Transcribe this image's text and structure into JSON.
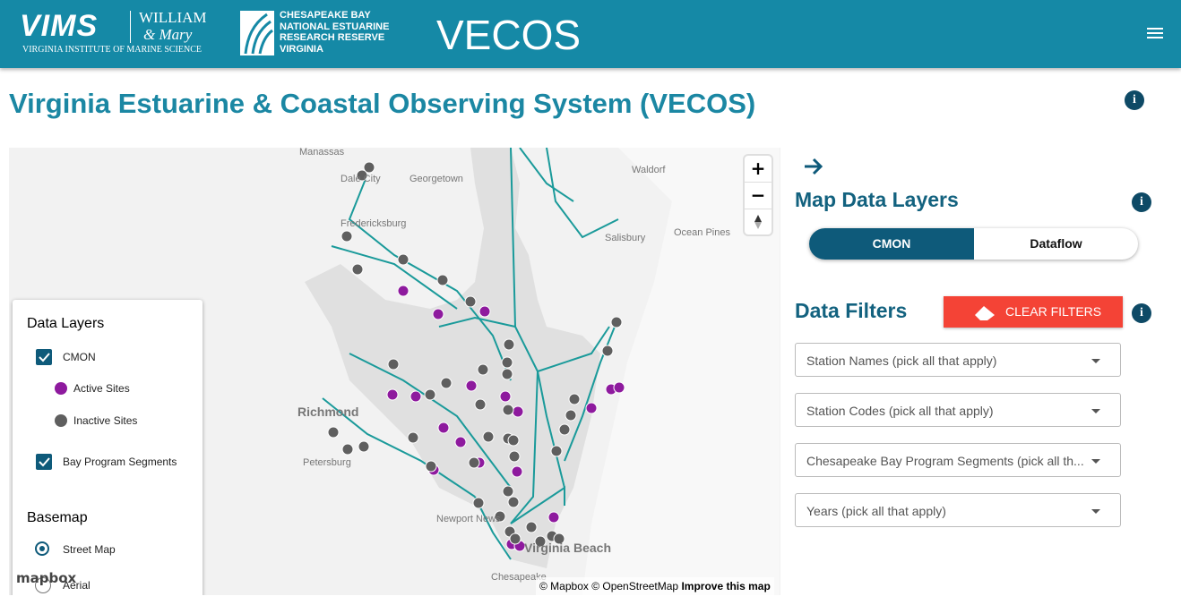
{
  "header": {
    "vims_logo": "VIMS",
    "wm_line1": "William",
    "wm_line2": "& Mary",
    "vims_subtitle": "Virginia Institute of Marine Science",
    "reserve_lines": [
      "CHESAPEAKE BAY",
      "NATIONAL ESTUARINE",
      "RESEARCH RESERVE",
      "VIRGINIA"
    ],
    "app_name": "VECOS"
  },
  "page_title": "Virginia Estuarine & Coastal Observing System (VECOS)",
  "map": {
    "place_labels": [
      "Manassas",
      "Dale City",
      "Waldorf",
      "Georgetown",
      "Fredericksburg",
      "Salisbury",
      "Ocean Pines",
      "Richmond",
      "Petersburg",
      "Newport News",
      "Virginia Beach",
      "Chesapeake"
    ],
    "zoom_in": "+",
    "zoom_out": "−",
    "legend": {
      "data_layers_title": "Data Layers",
      "cmon": "CMON",
      "active_sites": "Active Sites",
      "inactive_sites": "Inactive Sites",
      "segments": "Bay Program Segments",
      "basemap_title": "Basemap",
      "street_map": "Street Map",
      "aerial": "Aerial"
    },
    "logo": "mapbox",
    "attribution": "© Mapbox © OpenStreetMap",
    "improve": "Improve this map"
  },
  "panel": {
    "map_layers_title": "Map Data Layers",
    "toggle": [
      "CMON",
      "Dataflow"
    ],
    "filters_title": "Data Filters",
    "clear_filters": "CLEAR FILTERS",
    "selects": [
      "Station Names (pick all that apply)",
      "Station Codes (pick all that apply)",
      "Chesapeake Bay Program Segments (pick all th...",
      "Years (pick all that apply)"
    ]
  }
}
